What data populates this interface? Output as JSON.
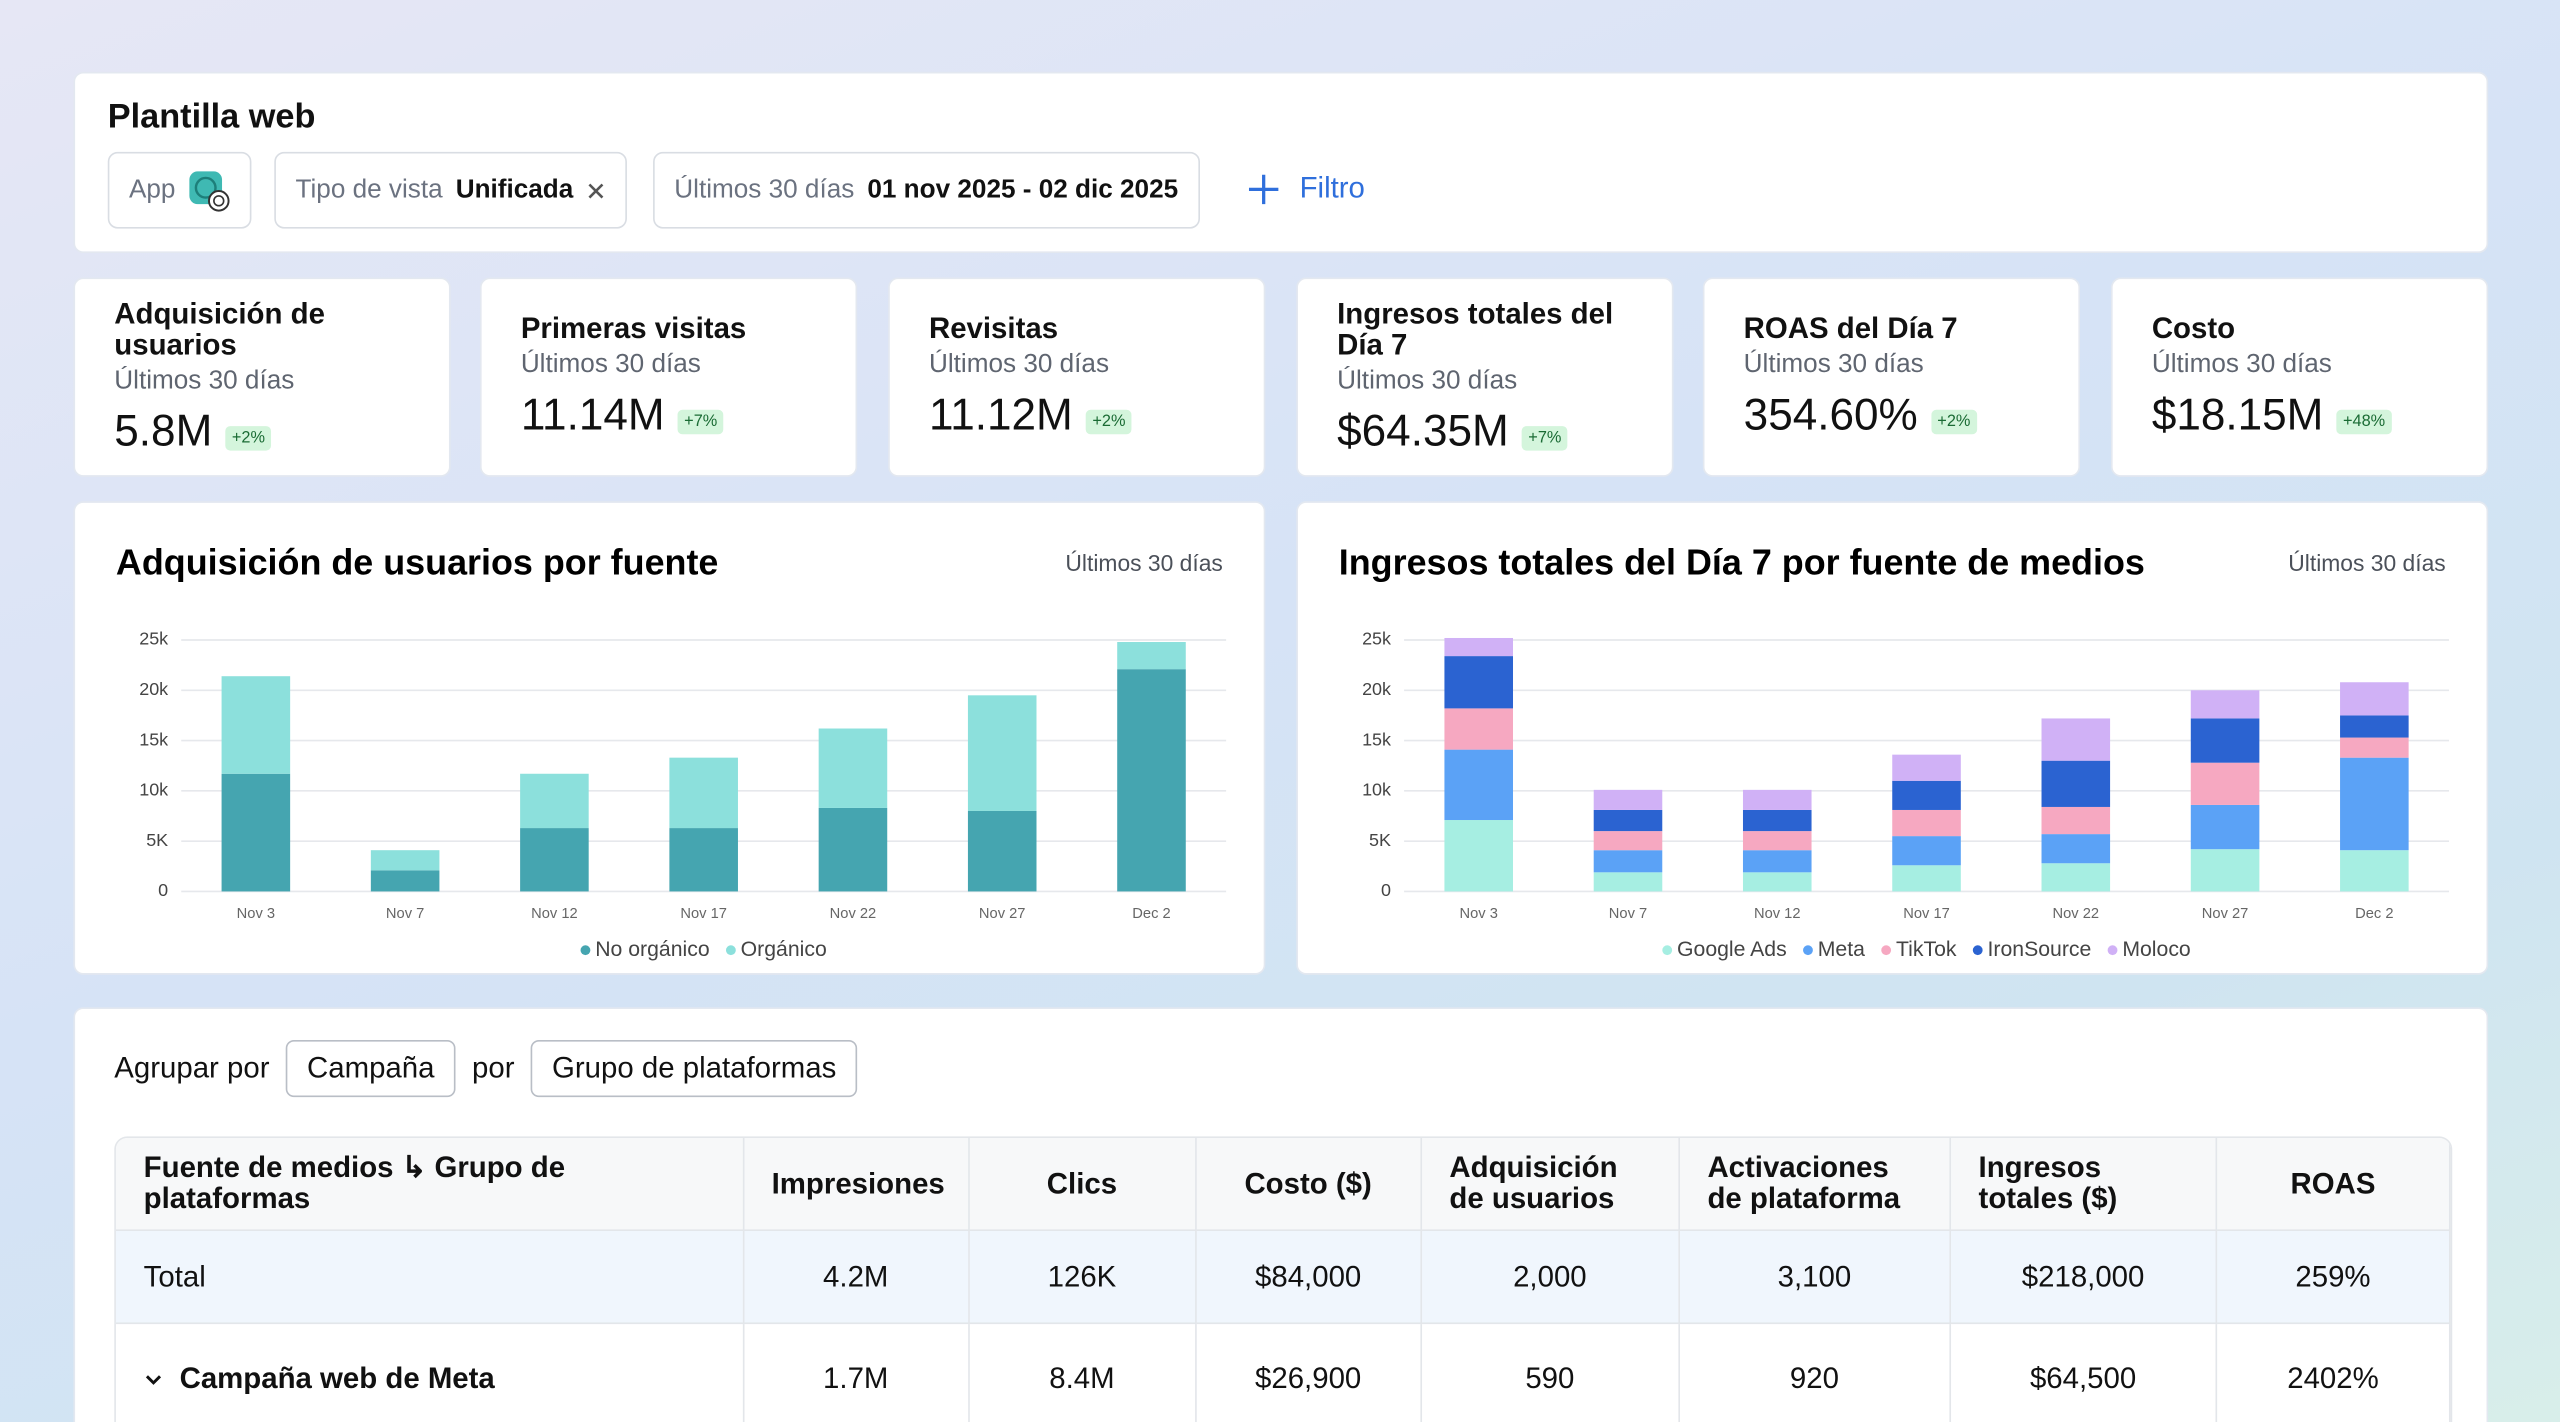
{
  "header": {
    "title": "Plantilla web",
    "filters": [
      {
        "label": "App"
      },
      {
        "label": "Tipo de vista",
        "value": "Unificada"
      },
      {
        "label": "Últimos 30 días",
        "value": "01 nov 2025 - 02 dic 2025"
      }
    ],
    "add_filter": "Filtro"
  },
  "kpis": [
    {
      "title": "Adquisición de usuarios",
      "period": "Últimos 30 días",
      "value": "5.8M",
      "change": "+2%"
    },
    {
      "title": "Primeras visitas",
      "period": "Últimos 30 días",
      "value": "11.14M",
      "change": "+7%"
    },
    {
      "title": "Revisitas",
      "period": "Últimos 30 días",
      "value": "11.12M",
      "change": "+2%"
    },
    {
      "title": "Ingresos totales del Día 7",
      "period": "Últimos 30 días",
      "value": "$64.35M",
      "change": "+7%"
    },
    {
      "title": "ROAS del Día 7",
      "period": "Últimos 30 días",
      "value": "354.60%",
      "change": "+2%"
    },
    {
      "title": "Costo",
      "period": "Últimos 30 días",
      "value": "$18.15M",
      "change": "+48%"
    }
  ],
  "chart_data": [
    {
      "type": "bar",
      "stacked": true,
      "title": "Adquisición de usuarios por fuente",
      "subtitle": "Últimos 30 días",
      "categories": [
        "Nov 3",
        "Nov 7",
        "Nov 12",
        "Nov 17",
        "Nov 22",
        "Nov 27",
        "Dec 2"
      ],
      "series": [
        {
          "name": "No orgánico",
          "color": "#45a5b0",
          "values": [
            11700,
            2100,
            6300,
            6300,
            8300,
            8000,
            22100
          ]
        },
        {
          "name": "Orgánico",
          "color": "#8ce0dc",
          "values": [
            9700,
            2000,
            5400,
            7000,
            7900,
            11500,
            2700
          ]
        }
      ],
      "ylim": [
        0,
        25000
      ],
      "yticks": [
        0,
        {
          "value": 5000,
          "label": "5K"
        },
        {
          "value": 10000,
          "label": "10k"
        },
        {
          "value": 15000,
          "label": "15k"
        },
        {
          "value": 20000,
          "label": "20k"
        },
        {
          "value": 25000,
          "label": "25k"
        }
      ],
      "grid": true
    },
    {
      "type": "bar",
      "stacked": true,
      "title": "Ingresos totales del Día 7 por fuente de medios",
      "subtitle": "Últimos 30 días",
      "categories": [
        "Nov 3",
        "Nov 7",
        "Nov 12",
        "Nov 17",
        "Nov 22",
        "Nov 27",
        "Dec 2"
      ],
      "series": [
        {
          "name": "Google Ads",
          "color": "#a6eee2",
          "values": [
            7100,
            1900,
            1900,
            2600,
            2800,
            4200,
            4100
          ]
        },
        {
          "name": "Meta",
          "color": "#5ba2f6",
          "values": [
            7000,
            2200,
            2200,
            2900,
            2900,
            4400,
            9200
          ]
        },
        {
          "name": "TikTok",
          "color": "#f6a8c1",
          "values": [
            4100,
            1900,
            1900,
            2600,
            2700,
            4200,
            2000
          ]
        },
        {
          "name": "IronSource",
          "color": "#2b63d1",
          "values": [
            5200,
            2100,
            2100,
            2900,
            4600,
            4400,
            2200
          ]
        },
        {
          "name": "Moloco",
          "color": "#d0b1f6",
          "values": [
            1800,
            2000,
            2000,
            2600,
            4200,
            2800,
            3300
          ]
        }
      ],
      "ylim": [
        0,
        25000
      ],
      "yticks": [
        0,
        {
          "value": 5000,
          "label": "5K"
        },
        {
          "value": 10000,
          "label": "10k"
        },
        {
          "value": 15000,
          "label": "15k"
        },
        {
          "value": 20000,
          "label": "20k"
        },
        {
          "value": 25000,
          "label": "25k"
        }
      ],
      "grid": true
    }
  ],
  "table": {
    "group_label": "Agrupar por",
    "group_primary": "Campaña",
    "connector": "por",
    "group_secondary": "Grupo de plataformas",
    "columns": [
      "Fuente de medios ↳ Grupo de plataformas",
      "Impresiones",
      "Clics",
      "Costo ($)",
      "Adquisición de usuarios",
      "Activaciones de plataforma",
      "Ingresos totales ($)",
      "ROAS"
    ],
    "rows": [
      [
        "Total",
        "4.2M",
        "126K",
        "$84,000",
        "2,000",
        "3,100",
        "$218,000",
        "259%"
      ],
      [
        "Campaña web de Meta",
        "1.7M",
        "8.4M",
        "$26,900",
        "590",
        "920",
        "$64,500",
        "2402%"
      ]
    ]
  }
}
